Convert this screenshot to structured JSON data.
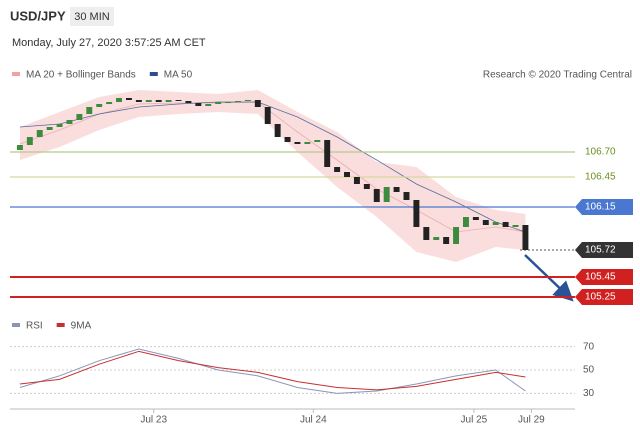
{
  "header": {
    "symbol": "USD/JPY",
    "interval": "30 MIN",
    "datetime": "Monday, July 27, 2020 3:57:25 AM CET"
  },
  "chart_data": [
    {
      "type": "candlestick",
      "legend": [
        {
          "name": "MA 20 + Bollinger Bands",
          "color": "#f2a0a0"
        },
        {
          "name": "MA 50",
          "color": "#2a4f8f"
        }
      ],
      "credit": "Research © 2020 Trading Central",
      "xlim": [
        -1,
        56
      ],
      "ylim": [
        105.12,
        107.37
      ],
      "xticks": [
        {
          "value": 13.5,
          "label": "Jul 23"
        },
        {
          "value": 29.6,
          "label": "Jul 24"
        },
        {
          "value": 45.8,
          "label": "Jul 25"
        },
        {
          "value": 51.6,
          "label": "Jul 29"
        }
      ],
      "open": [
        106.72,
        106.77,
        106.85,
        106.92,
        106.95,
        106.98,
        107.02,
        107.08,
        107.15,
        107.18,
        107.2,
        107.24,
        107.22,
        107.2,
        107.22,
        107.2,
        107.22,
        107.21,
        107.19,
        107.16,
        107.18,
        107.2,
        107.2,
        107.21,
        107.22,
        107.15,
        106.98,
        106.85,
        106.8,
        106.78,
        106.8,
        106.82,
        106.55,
        106.5,
        106.45,
        106.38,
        106.33,
        106.2,
        106.35,
        106.3,
        106.22,
        105.95,
        105.82,
        105.85,
        105.78,
        105.95,
        106.05,
        106.02,
        105.97,
        106.0,
        105.95,
        105.97
      ],
      "close": [
        106.77,
        106.85,
        106.92,
        106.95,
        106.98,
        107.02,
        107.08,
        107.15,
        107.18,
        107.2,
        107.24,
        107.22,
        107.2,
        107.22,
        107.2,
        107.22,
        107.21,
        107.19,
        107.16,
        107.18,
        107.2,
        107.2,
        107.21,
        107.22,
        107.15,
        106.98,
        106.85,
        106.8,
        106.78,
        106.8,
        106.82,
        106.55,
        106.5,
        106.45,
        106.38,
        106.33,
        106.2,
        106.35,
        106.3,
        106.22,
        105.95,
        105.82,
        105.85,
        105.78,
        105.95,
        106.05,
        106.02,
        105.97,
        106.0,
        105.95,
        105.97,
        105.72
      ],
      "up_color": "#3d8b3d",
      "down_color": "#222222",
      "indicators": {
        "x": [
          0,
          4,
          8,
          12,
          16,
          20,
          24,
          28,
          32,
          36,
          40,
          44,
          48,
          51
        ],
        "band_upper": [
          106.95,
          107.1,
          107.25,
          107.32,
          107.3,
          107.28,
          107.32,
          107.1,
          106.9,
          106.6,
          106.55,
          106.25,
          106.12,
          106.08
        ],
        "band_lower": [
          106.62,
          106.75,
          106.92,
          107.05,
          107.08,
          107.1,
          107.08,
          106.7,
          106.35,
          106.05,
          105.7,
          105.6,
          105.75,
          105.72
        ],
        "ma20": [
          106.78,
          106.92,
          107.08,
          107.18,
          107.19,
          107.19,
          107.2,
          106.9,
          106.62,
          106.33,
          106.12,
          105.9,
          105.95,
          105.9
        ],
        "ma50": [
          106.95,
          106.98,
          107.08,
          107.15,
          107.18,
          107.2,
          107.2,
          107.05,
          106.85,
          106.62,
          106.38,
          106.2,
          106.0,
          105.9
        ]
      },
      "levels": [
        {
          "value": 106.7,
          "label": "106.70",
          "color": "#b5c98a",
          "text_color": "#6a8f1e",
          "boxed": false
        },
        {
          "value": 106.45,
          "label": "106.45",
          "color": "#d8d89a",
          "text_color": "#6a8f1e",
          "boxed": false
        },
        {
          "value": 106.15,
          "label": "106.15",
          "color": "#4a78d0",
          "text_color": "#ffffff",
          "boxed": true
        },
        {
          "value": 105.72,
          "label": "105.72",
          "color": "#333333",
          "text_color": "#ffffff",
          "boxed": true,
          "line": false
        },
        {
          "value": 105.45,
          "label": "105.45",
          "color": "#d02020",
          "text_color": "#ffffff",
          "boxed": true
        },
        {
          "value": 105.25,
          "label": "105.25",
          "color": "#d02020",
          "text_color": "#ffffff",
          "boxed": true
        }
      ]
    },
    {
      "type": "line",
      "xlim": [
        -1,
        56
      ],
      "ylim": [
        20,
        80
      ],
      "yticks": [
        30,
        50,
        70
      ],
      "x": [
        0,
        4,
        8,
        12,
        16,
        20,
        24,
        28,
        32,
        36,
        40,
        44,
        48,
        51
      ],
      "series": [
        {
          "name": "RSI",
          "color": "#8a96b8",
          "values": [
            35,
            45,
            58,
            68,
            60,
            50,
            45,
            35,
            30,
            32,
            38,
            45,
            50,
            32
          ]
        },
        {
          "name": "9MA",
          "color": "#c83030",
          "values": [
            38,
            42,
            55,
            66,
            58,
            52,
            48,
            40,
            35,
            33,
            36,
            42,
            48,
            44
          ]
        }
      ]
    }
  ]
}
